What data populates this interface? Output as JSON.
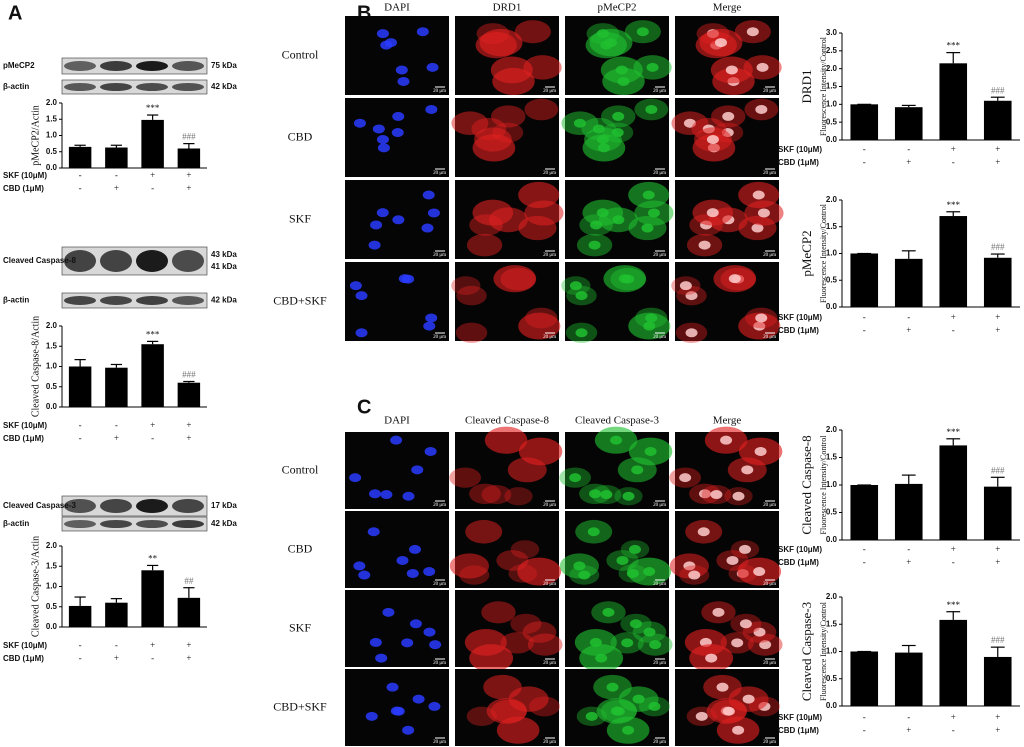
{
  "panel_labels": [
    "A",
    "B",
    "C"
  ],
  "blots": [
    {
      "rows": [
        {
          "name": "pMeCP2",
          "sizes": [
            "75 kDa"
          ]
        },
        {
          "name": "β-actin",
          "sizes": [
            "42 kDa"
          ]
        }
      ]
    },
    {
      "rows": [
        {
          "name": "Cleaved Caspase-8",
          "sizes": [
            "43 kDa",
            "41 kDa"
          ]
        },
        {
          "name": "β-actin",
          "sizes": [
            "42 kDa"
          ]
        }
      ]
    },
    {
      "rows": [
        {
          "name": "Cleaved Caspase-3",
          "sizes": [
            "17 kDa"
          ]
        },
        {
          "name": "β-actin",
          "sizes": [
            "42 kDa"
          ]
        }
      ]
    }
  ],
  "microscopy": [
    {
      "columns": [
        "DAPI",
        "DRD1",
        "pMeCP2",
        "Merge"
      ],
      "rows": [
        "Control",
        "CBD",
        "SKF",
        "CBD+SKF"
      ],
      "scale_bar": "20 μm"
    },
    {
      "columns": [
        "DAPI",
        "Cleaved Caspase-8",
        "Cleaved Caspase-3",
        "Merge"
      ],
      "rows": [
        "Control",
        "CBD",
        "SKF",
        "CBD+SKF"
      ],
      "scale_bar": "20 μm"
    }
  ],
  "chart_data": [
    {
      "type": "bar",
      "ylabel": "pMeCP2/Actin",
      "color": "#000000",
      "values": [
        0.65,
        0.63,
        1.48,
        0.6
      ],
      "errors": [
        0.05,
        0.07,
        0.15,
        0.15
      ],
      "annotations": [
        null,
        null,
        "***",
        "###"
      ],
      "ylim": [
        0,
        2
      ],
      "yticks": [
        {
          "value": 0,
          "label": "0.0"
        },
        {
          "value": 0.5,
          "label": "0.5"
        },
        {
          "value": 1,
          "label": "1.0"
        },
        {
          "value": 1.5,
          "label": "1.5"
        },
        {
          "value": 2,
          "label": "2.0"
        }
      ],
      "treatments": [
        {
          "name": "SKF (10μM)",
          "signs": [
            "-",
            "-",
            "+",
            "+"
          ]
        },
        {
          "name": "CBD (1μM)",
          "signs": [
            "-",
            "+",
            "-",
            "+"
          ]
        }
      ]
    },
    {
      "type": "bar",
      "ylabel": "Cleaved Caspase-8/Actin",
      "color": "#000000",
      "values": [
        1.0,
        0.97,
        1.55,
        0.6
      ],
      "errors": [
        0.17,
        0.08,
        0.07,
        0.03
      ],
      "annotations": [
        null,
        null,
        "***",
        "###"
      ],
      "ylim": [
        0,
        2
      ],
      "yticks": [
        {
          "value": 0,
          "label": "0.0"
        },
        {
          "value": 0.5,
          "label": "0.5"
        },
        {
          "value": 1,
          "label": "1.0"
        },
        {
          "value": 1.5,
          "label": "1.5"
        },
        {
          "value": 2,
          "label": "2.0"
        }
      ],
      "treatments": [
        {
          "name": "SKF (10μM)",
          "signs": [
            "-",
            "-",
            "+",
            "+"
          ]
        },
        {
          "name": "CBD (1μM)",
          "signs": [
            "-",
            "+",
            "-",
            "+"
          ]
        }
      ]
    },
    {
      "type": "bar",
      "ylabel": "Cleaved Caspase-3/Actin",
      "color": "#000000",
      "values": [
        0.52,
        0.6,
        1.4,
        0.72
      ],
      "errors": [
        0.22,
        0.1,
        0.12,
        0.25
      ],
      "annotations": [
        null,
        null,
        "**",
        "##"
      ],
      "ylim": [
        0,
        2
      ],
      "yticks": [
        {
          "value": 0,
          "label": "0.0"
        },
        {
          "value": 0.5,
          "label": "0.5"
        },
        {
          "value": 1,
          "label": "1.0"
        },
        {
          "value": 1.5,
          "label": "1.5"
        },
        {
          "value": 2,
          "label": "2.0"
        }
      ],
      "treatments": [
        {
          "name": "SKF (10μM)",
          "signs": [
            "-",
            "-",
            "+",
            "+"
          ]
        },
        {
          "name": "CBD (1μM)",
          "signs": [
            "-",
            "+",
            "-",
            "+"
          ]
        }
      ]
    },
    {
      "type": "bar",
      "ylabel": "DRD1",
      "ylabel_note": "Fluorescence Intensity/Control",
      "color": "#000000",
      "values": [
        1.0,
        0.92,
        2.15,
        1.1
      ],
      "errors": [
        0,
        0.05,
        0.3,
        0.1
      ],
      "annotations": [
        null,
        null,
        "***",
        "###"
      ],
      "ylim": [
        0,
        3
      ],
      "yticks": [
        {
          "value": 0,
          "label": "0.0"
        },
        {
          "value": 0.5,
          "label": "0.5"
        },
        {
          "value": 1,
          "label": "1.0"
        },
        {
          "value": 1.5,
          "label": "1.5"
        },
        {
          "value": 2,
          "label": "2.0"
        },
        {
          "value": 2.5,
          "label": "2.5"
        },
        {
          "value": 3,
          "label": "3.0"
        }
      ],
      "treatments": [
        {
          "name": "SKF (10μM)",
          "signs": [
            "-",
            "-",
            "+",
            "+"
          ]
        },
        {
          "name": "CBD (1μM)",
          "signs": [
            "-",
            "+",
            "-",
            "+"
          ]
        }
      ]
    },
    {
      "type": "bar",
      "ylabel": "pMeCP2",
      "ylabel_note": "Fluorescence Intensity/Control",
      "color": "#000000",
      "values": [
        1.0,
        0.9,
        1.7,
        0.92
      ],
      "errors": [
        0,
        0.15,
        0.08,
        0.07
      ],
      "annotations": [
        null,
        null,
        "***",
        "###"
      ],
      "ylim": [
        0,
        2
      ],
      "yticks": [
        {
          "value": 0,
          "label": "0.0"
        },
        {
          "value": 0.5,
          "label": "0.5"
        },
        {
          "value": 1,
          "label": "1.0"
        },
        {
          "value": 1.5,
          "label": "1.5"
        },
        {
          "value": 2,
          "label": "2.0"
        }
      ],
      "treatments": [
        {
          "name": "SKF (10μM)",
          "signs": [
            "-",
            "-",
            "+",
            "+"
          ]
        },
        {
          "name": "CBD (1μM)",
          "signs": [
            "-",
            "+",
            "-",
            "+"
          ]
        }
      ]
    },
    {
      "type": "bar",
      "ylabel": "Cleaved Caspase-8",
      "ylabel_note": "Fluorescence Intensity/Control",
      "color": "#000000",
      "values": [
        1.0,
        1.02,
        1.72,
        0.97
      ],
      "errors": [
        0,
        0.16,
        0.12,
        0.17
      ],
      "annotations": [
        null,
        null,
        "***",
        "###"
      ],
      "ylim": [
        0,
        2
      ],
      "yticks": [
        {
          "value": 0,
          "label": "0.0"
        },
        {
          "value": 0.5,
          "label": "0.5"
        },
        {
          "value": 1,
          "label": "1.0"
        },
        {
          "value": 1.5,
          "label": "1.5"
        },
        {
          "value": 2,
          "label": "2.0"
        }
      ],
      "treatments": [
        {
          "name": "SKF (10μM)",
          "signs": [
            "-",
            "-",
            "+",
            "+"
          ]
        },
        {
          "name": "CBD (1μM)",
          "signs": [
            "-",
            "+",
            "-",
            "+"
          ]
        }
      ]
    },
    {
      "type": "bar",
      "ylabel": "Cleaved Caspase-3",
      "ylabel_note": "Fluorescence Intensity/Control",
      "color": "#000000",
      "values": [
        1.0,
        0.98,
        1.58,
        0.9
      ],
      "errors": [
        0,
        0.13,
        0.15,
        0.18
      ],
      "annotations": [
        null,
        null,
        "***",
        "###"
      ],
      "ylim": [
        0,
        2
      ],
      "yticks": [
        {
          "value": 0,
          "label": "0.0"
        },
        {
          "value": 0.5,
          "label": "0.5"
        },
        {
          "value": 1,
          "label": "1.0"
        },
        {
          "value": 1.5,
          "label": "1.5"
        },
        {
          "value": 2,
          "label": "2.0"
        }
      ],
      "treatments": [
        {
          "name": "SKF (10μM)",
          "signs": [
            "-",
            "-",
            "+",
            "+"
          ]
        },
        {
          "name": "CBD (1μM)",
          "signs": [
            "-",
            "+",
            "-",
            "+"
          ]
        }
      ]
    }
  ]
}
